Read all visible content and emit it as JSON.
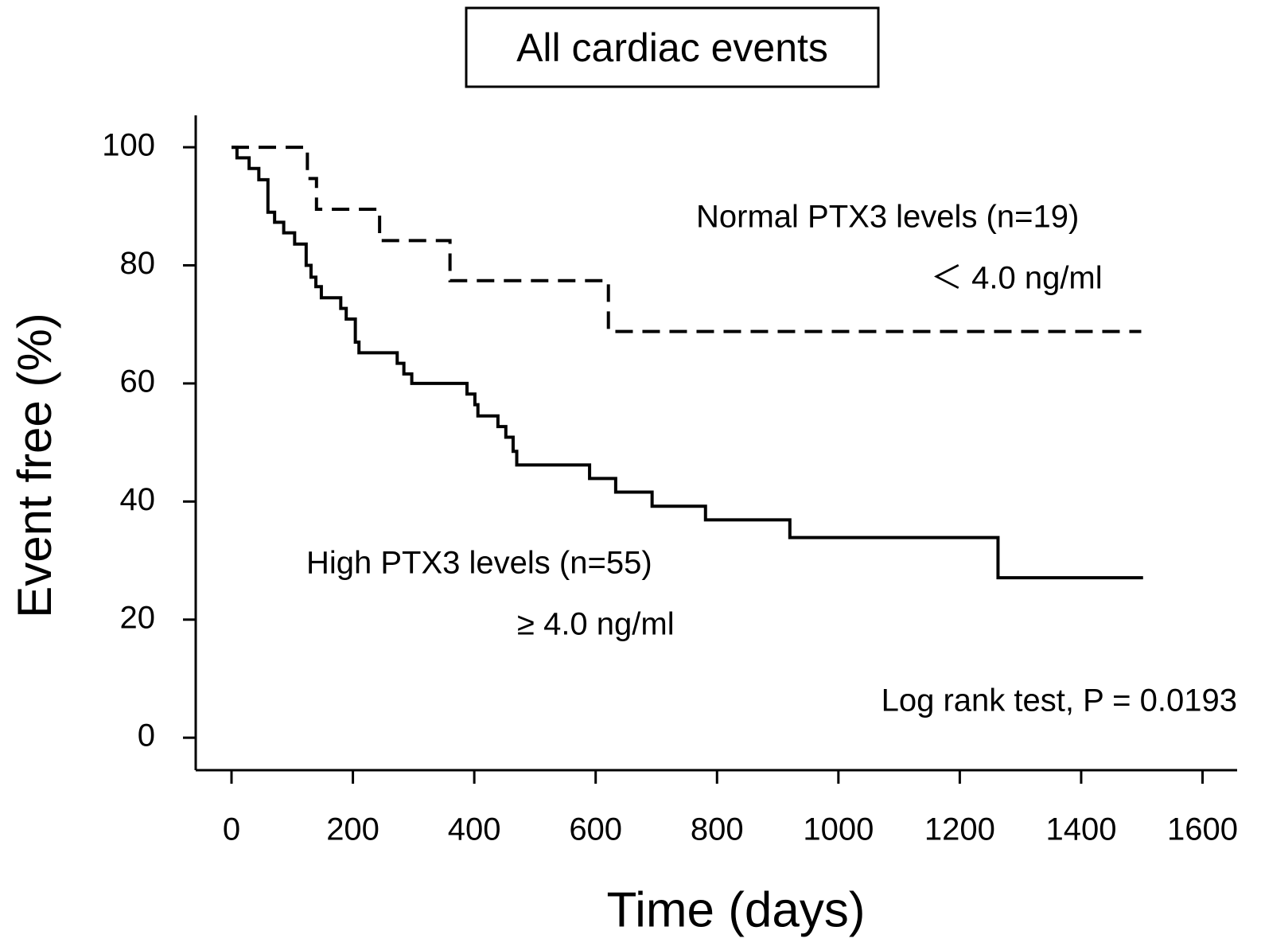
{
  "chart_data": {
    "type": "line",
    "step": "post",
    "title": "All cardiac events",
    "x_label": "Time (days)",
    "y_label": "Event free (%)",
    "annotation": "Log rank test, P = 0.0193",
    "xlim": [
      -59,
      1657
    ],
    "ylim": [
      -5.5,
      105.4
    ],
    "xticks": [
      0,
      200,
      400,
      600,
      800,
      1000,
      1200,
      1400,
      1600
    ],
    "yticks": [
      0,
      20,
      40,
      60,
      80,
      100
    ],
    "series": [
      {
        "name": "Normal PTX3 levels (n=19)",
        "label": "＜ 4.0 ng/ml",
        "color": "#000000",
        "dashed": true,
        "x": [
          0,
          125,
          140,
          244,
          360,
          621,
          1499
        ],
        "values": [
          100,
          94.7,
          89.5,
          84.2,
          77.4,
          68.8,
          68.8
        ]
      },
      {
        "name": "High PTX3 levels (n=55)",
        "label": "≥ 4.0 ng/ml",
        "color": "#000000",
        "dashed": false,
        "x": [
          0,
          9,
          29,
          45,
          60,
          71,
          86,
          104,
          123,
          131,
          139,
          148,
          180,
          189,
          204,
          210,
          273,
          284,
          297,
          388,
          401,
          406,
          439,
          452,
          464,
          470,
          590,
          633,
          693,
          781,
          920,
          1263,
          1502
        ],
        "values": [
          100,
          98.2,
          96.4,
          94.5,
          89,
          87.3,
          85.5,
          83.6,
          80,
          78,
          76.4,
          74.5,
          72.7,
          70.9,
          67,
          65.2,
          63.4,
          61.6,
          60,
          58.2,
          56.4,
          54.5,
          52.7,
          50.9,
          48.5,
          46.2,
          43.9,
          41.6,
          39.2,
          36.9,
          33.9,
          27.1,
          27.1
        ]
      }
    ]
  }
}
